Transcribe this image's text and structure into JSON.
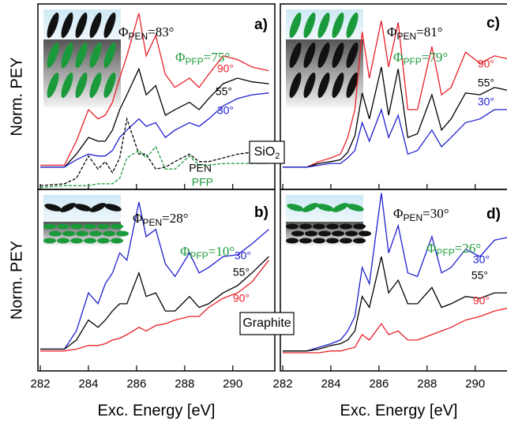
{
  "chart_data": [
    {
      "type": "line",
      "panel_label": "a)",
      "ylabel": "Norm. PEY",
      "xlim": [
        281.9,
        291.75
      ],
      "ylim": [
        0,
        1
      ],
      "xticks": [
        282,
        284,
        286,
        288,
        290
      ],
      "annotations": [
        {
          "symbol": "Φ",
          "sub": "PEN",
          "tail": "=83°",
          "color": "#000000"
        },
        {
          "symbol": "Φ",
          "sub": "PFP",
          "tail": "=75°",
          "color": "#1a9a3a"
        }
      ],
      "x": [
        282,
        283,
        283.5,
        284.0,
        284.4,
        284.7,
        285.0,
        285.3,
        285.6,
        286.1,
        286.4,
        286.8,
        287.2,
        287.6,
        288.2,
        288.6,
        289.0,
        289.6,
        290.2,
        290.8,
        291.5
      ],
      "series": [
        {
          "name": "90°",
          "color": "#e8202a",
          "dashed": false,
          "values": [
            0.13,
            0.13,
            0.26,
            0.43,
            0.38,
            0.4,
            0.47,
            0.6,
            0.72,
            0.95,
            0.72,
            0.83,
            0.62,
            0.55,
            0.6,
            0.55,
            0.62,
            0.72,
            0.7,
            0.66,
            0.64
          ]
        },
        {
          "name": "55°",
          "color": "#000000",
          "dashed": false,
          "values": [
            0.12,
            0.12,
            0.19,
            0.28,
            0.26,
            0.26,
            0.32,
            0.43,
            0.51,
            0.65,
            0.51,
            0.56,
            0.4,
            0.43,
            0.47,
            0.43,
            0.49,
            0.57,
            0.6,
            0.58,
            0.57
          ]
        },
        {
          "name": "30°",
          "color": "#2020d0",
          "dashed": false,
          "values": [
            0.12,
            0.12,
            0.16,
            0.19,
            0.18,
            0.18,
            0.21,
            0.28,
            0.32,
            0.38,
            0.34,
            0.36,
            0.28,
            0.32,
            0.36,
            0.34,
            0.38,
            0.45,
            0.49,
            0.51,
            0.52
          ]
        },
        {
          "name": "PEN",
          "color": "#000000",
          "dashed": true,
          "values": [
            0.02,
            0.03,
            0.06,
            0.18,
            0.11,
            0.15,
            0.09,
            0.17,
            0.38,
            0.19,
            0.19,
            0.11,
            0.12,
            0.15,
            0.19,
            0.15,
            0.15,
            0.17,
            0.19,
            0.2,
            0.23
          ]
        },
        {
          "name": "PFP",
          "color": "#1a9a3a",
          "dashed": true,
          "values": [
            0.01,
            0.02,
            0.02,
            0.02,
            0.03,
            0.03,
            0.03,
            0.06,
            0.17,
            0.21,
            0.17,
            0.23,
            0.11,
            0.11,
            0.18,
            0.13,
            0.13,
            0.14,
            0.14,
            0.14,
            0.14
          ]
        }
      ]
    },
    {
      "type": "line",
      "panel_label": "b)",
      "ylabel": "Norm. PEY",
      "xlabel": "Exc. Energy [eV]",
      "xlim": [
        281.9,
        291.75
      ],
      "ylim": [
        0,
        1
      ],
      "xticks": [
        282,
        284,
        286,
        288,
        290
      ],
      "annotations": [
        {
          "symbol": "Φ",
          "sub": "PEN",
          "tail": "=28°",
          "color": "#000000"
        },
        {
          "symbol": "Φ",
          "sub": "PFP",
          "tail": "=10°",
          "color": "#1a9a3a"
        }
      ],
      "x": [
        282,
        283,
        283.5,
        284.0,
        284.4,
        284.7,
        285.0,
        285.3,
        285.6,
        286.1,
        286.4,
        286.8,
        287.2,
        287.6,
        288.2,
        288.6,
        289.0,
        289.6,
        290.2,
        290.8,
        291.5
      ],
      "series": [
        {
          "name": "30°",
          "color": "#2020d0",
          "dashed": false,
          "values": [
            0.12,
            0.12,
            0.22,
            0.43,
            0.37,
            0.48,
            0.54,
            0.65,
            0.61,
            0.93,
            0.74,
            0.78,
            0.59,
            0.52,
            0.65,
            0.54,
            0.57,
            0.63,
            0.64,
            0.7,
            0.78
          ]
        },
        {
          "name": "55°",
          "color": "#000000",
          "dashed": false,
          "values": [
            0.12,
            0.12,
            0.17,
            0.28,
            0.24,
            0.28,
            0.33,
            0.37,
            0.37,
            0.54,
            0.41,
            0.43,
            0.33,
            0.33,
            0.41,
            0.35,
            0.37,
            0.43,
            0.47,
            0.54,
            0.63
          ]
        },
        {
          "name": "90°",
          "color": "#e8202a",
          "dashed": false,
          "values": [
            0.11,
            0.11,
            0.12,
            0.14,
            0.14,
            0.15,
            0.17,
            0.18,
            0.2,
            0.24,
            0.22,
            0.25,
            0.26,
            0.28,
            0.3,
            0.3,
            0.35,
            0.4,
            0.43,
            0.49,
            0.61
          ]
        }
      ]
    },
    {
      "type": "line",
      "panel_label": "c)",
      "xlim": [
        281.9,
        291.75
      ],
      "ylim": [
        0,
        1
      ],
      "xticks": [
        282,
        284,
        286,
        288,
        290
      ],
      "annotations": [
        {
          "symbol": "Φ",
          "sub": "PEN",
          "tail": "=81°",
          "color": "#000000"
        },
        {
          "symbol": "Φ",
          "sub": "PFP",
          "tail": "=79°",
          "color": "#1a9a3a"
        }
      ],
      "x": [
        282,
        283,
        283.5,
        284.0,
        284.4,
        284.7,
        285.0,
        285.3,
        285.6,
        286.1,
        286.4,
        286.8,
        287.2,
        287.6,
        288.2,
        288.6,
        289.0,
        289.6,
        290.2,
        290.8,
        291.5
      ],
      "series": [
        {
          "name": "90°",
          "color": "#e8202a",
          "dashed": false,
          "values": [
            0.12,
            0.12,
            0.15,
            0.17,
            0.19,
            0.28,
            0.43,
            0.85,
            0.6,
            0.91,
            0.66,
            0.9,
            0.43,
            0.43,
            0.77,
            0.51,
            0.55,
            0.74,
            0.68,
            0.72,
            0.7
          ]
        },
        {
          "name": "55°",
          "color": "#000000",
          "dashed": false,
          "values": [
            0.12,
            0.12,
            0.14,
            0.15,
            0.16,
            0.2,
            0.29,
            0.52,
            0.38,
            0.66,
            0.4,
            0.65,
            0.28,
            0.3,
            0.51,
            0.32,
            0.38,
            0.52,
            0.51,
            0.55,
            0.53
          ]
        },
        {
          "name": "30°",
          "color": "#2020d0",
          "dashed": false,
          "values": [
            0.12,
            0.12,
            0.13,
            0.14,
            0.14,
            0.17,
            0.21,
            0.36,
            0.26,
            0.43,
            0.28,
            0.4,
            0.19,
            0.21,
            0.32,
            0.23,
            0.28,
            0.36,
            0.38,
            0.43,
            0.43
          ]
        }
      ]
    },
    {
      "type": "line",
      "panel_label": "d)",
      "xlabel": "Exc. Energy [eV]",
      "xlim": [
        281.9,
        291.75
      ],
      "ylim": [
        0,
        1
      ],
      "xticks": [
        282,
        284,
        286,
        288,
        290
      ],
      "annotations": [
        {
          "symbol": "Φ",
          "sub": "PEN",
          "tail": "=30°",
          "color": "#000000"
        },
        {
          "symbol": "Φ",
          "sub": "PFP",
          "tail": "=26°",
          "color": "#1a9a3a"
        }
      ],
      "x": [
        282,
        283,
        283.5,
        284.0,
        284.4,
        284.7,
        285.0,
        285.3,
        285.6,
        286.1,
        286.4,
        286.8,
        287.2,
        287.6,
        288.2,
        288.6,
        289.0,
        289.6,
        290.2,
        290.8,
        291.5
      ],
      "series": [
        {
          "name": "30°",
          "color": "#2020d0",
          "dashed": false,
          "values": [
            0.11,
            0.11,
            0.13,
            0.15,
            0.17,
            0.22,
            0.3,
            0.57,
            0.48,
            0.98,
            0.65,
            0.8,
            0.54,
            0.52,
            0.74,
            0.54,
            0.57,
            0.67,
            0.63,
            0.72,
            0.74
          ]
        },
        {
          "name": "55°",
          "color": "#000000",
          "dashed": false,
          "values": [
            0.11,
            0.11,
            0.12,
            0.14,
            0.15,
            0.17,
            0.22,
            0.41,
            0.35,
            0.63,
            0.43,
            0.5,
            0.37,
            0.37,
            0.46,
            0.35,
            0.37,
            0.41,
            0.4,
            0.43,
            0.43
          ]
        },
        {
          "name": "90°",
          "color": "#e8202a",
          "dashed": false,
          "values": [
            0.1,
            0.1,
            0.1,
            0.11,
            0.11,
            0.12,
            0.13,
            0.2,
            0.17,
            0.26,
            0.2,
            0.22,
            0.17,
            0.17,
            0.2,
            0.22,
            0.24,
            0.28,
            0.3,
            0.33,
            0.35
          ]
        }
      ]
    }
  ],
  "substrates": [
    {
      "text": "SiO",
      "sub": "2"
    },
    {
      "text": "Graphite"
    }
  ]
}
